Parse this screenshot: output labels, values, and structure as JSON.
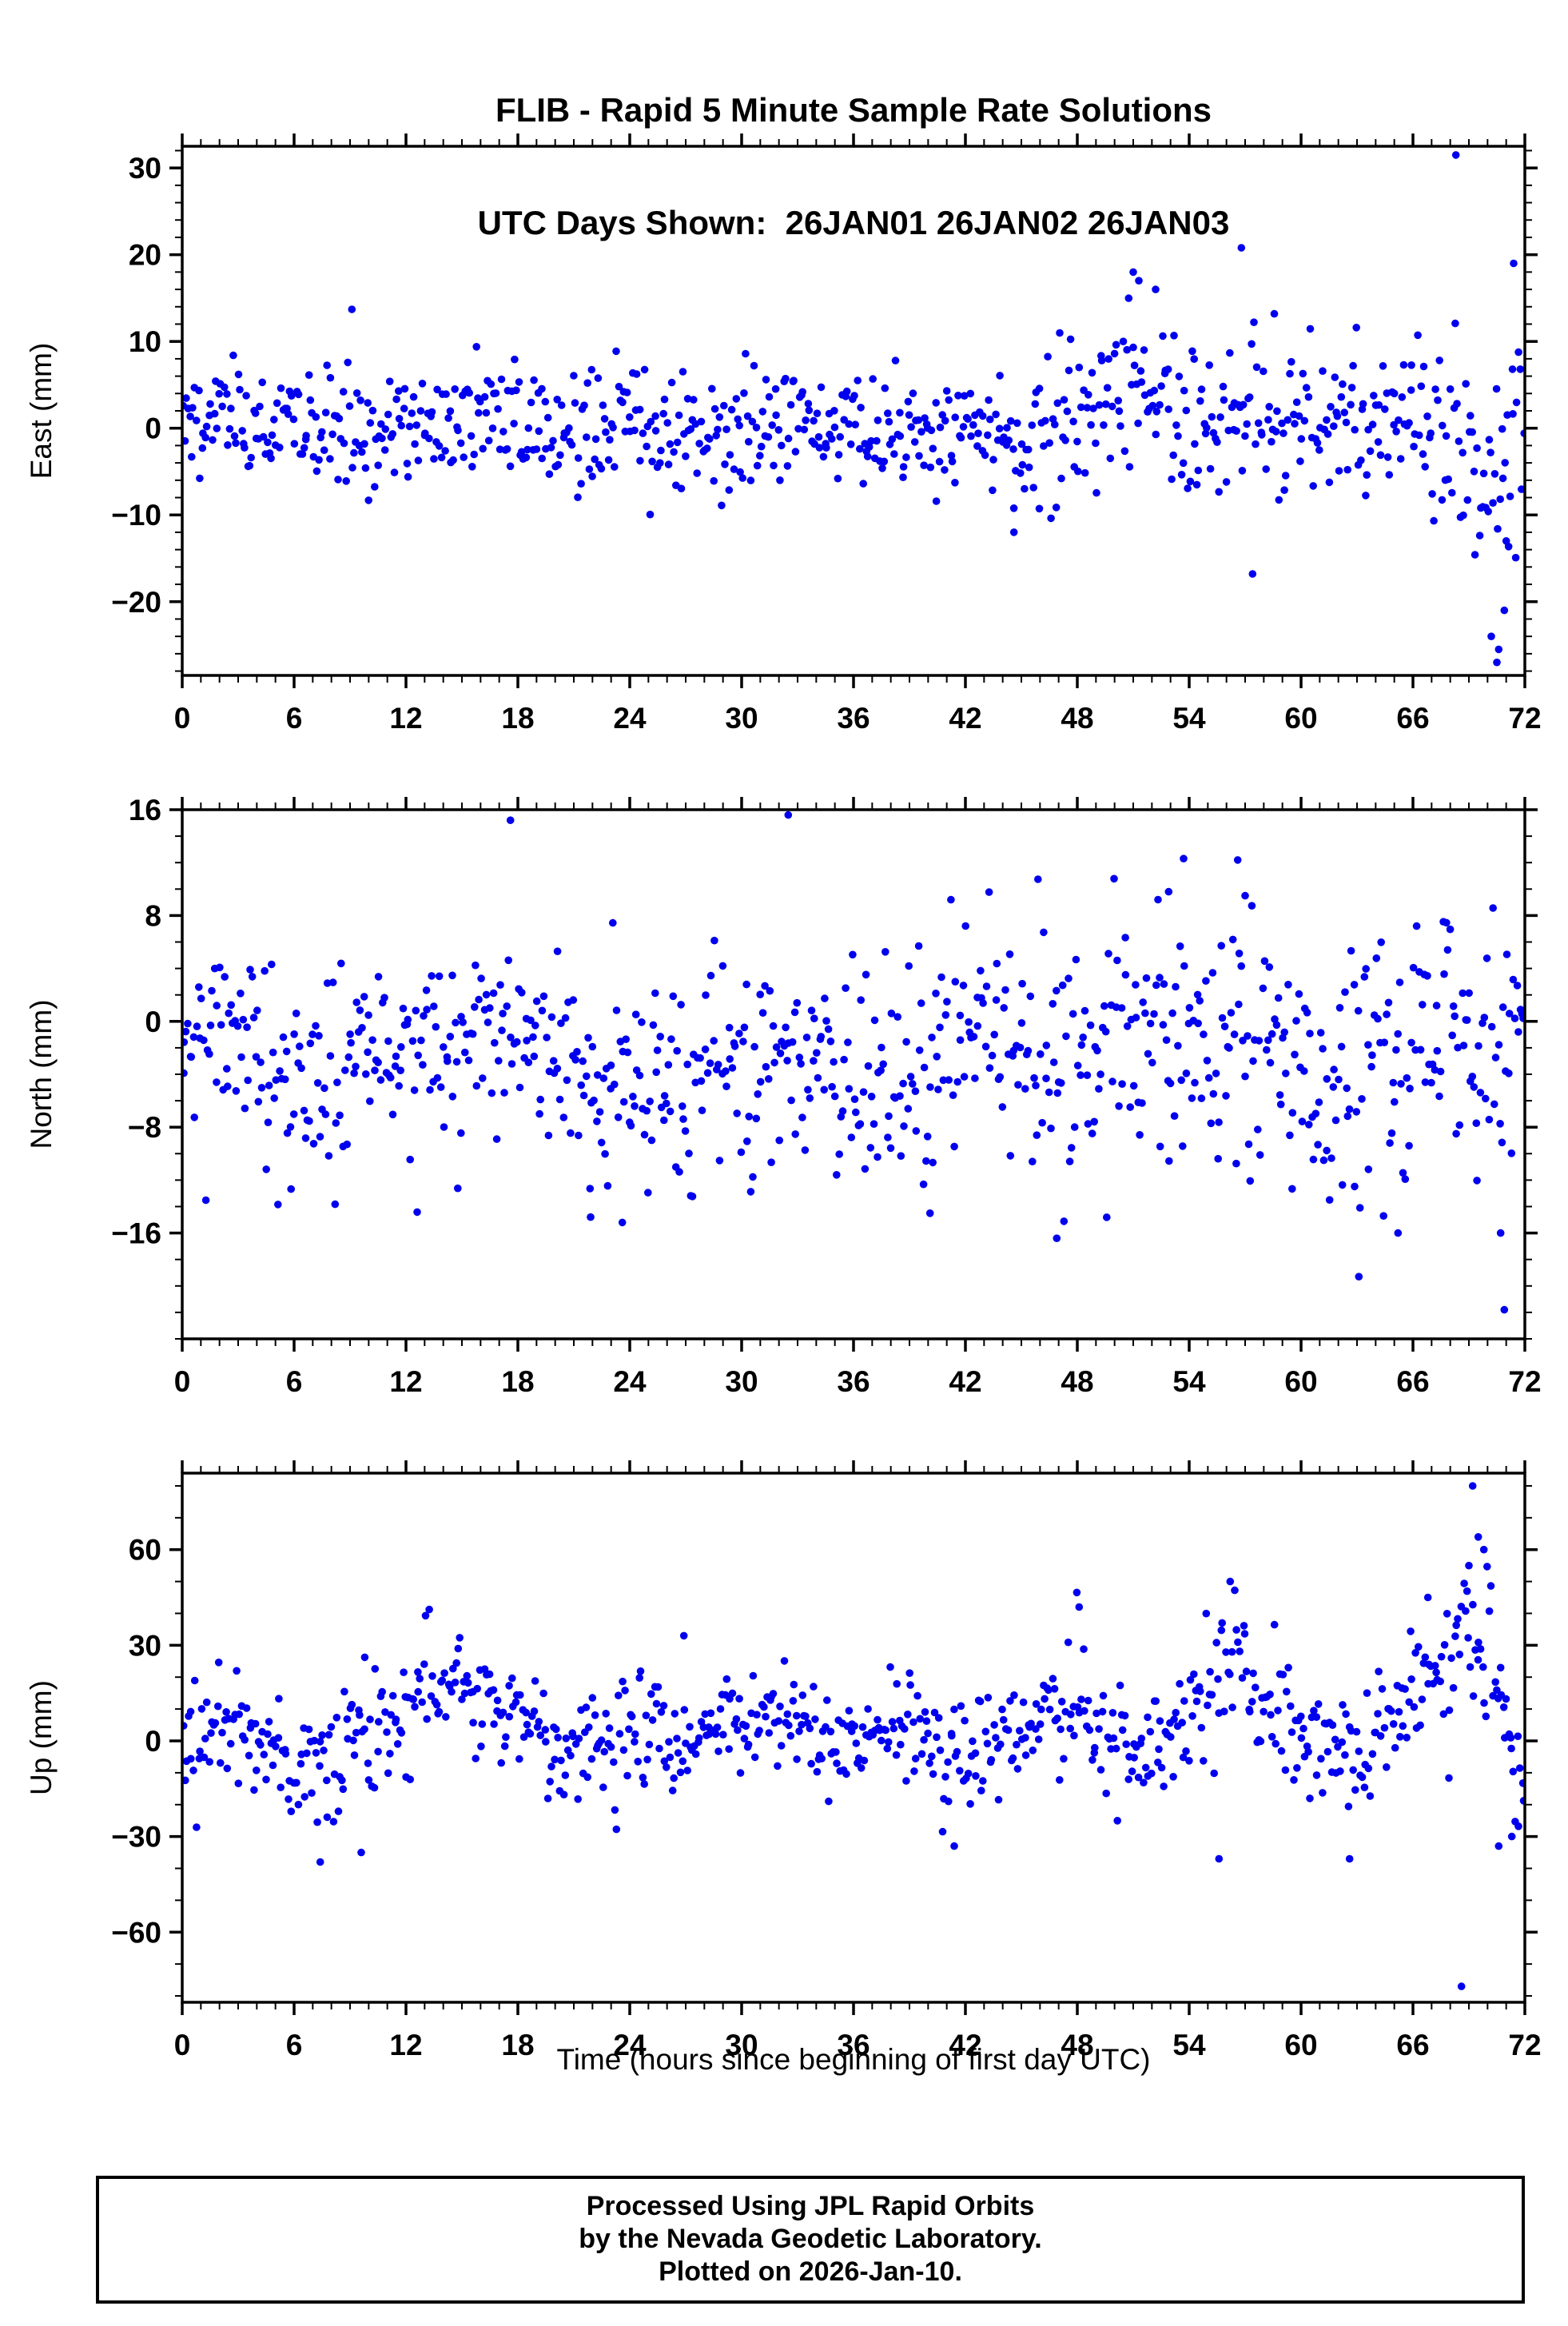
{
  "figure": {
    "title_line1": "FLIB - Rapid 5 Minute Sample Rate Solutions",
    "title_line2": "UTC Days Shown:  26JAN01 26JAN02 26JAN03",
    "footer_lines": [
      "Processed Using JPL Rapid Orbits",
      "by the Nevada Geodetic Laboratory.",
      "Plotted on 2026-Jan-10."
    ]
  },
  "chart_data": {
    "type": "scatter",
    "title": "FLIB - Rapid 5 Minute Sample Rate Solutions",
    "subtitle": "UTC Days Shown:  26JAN01 26JAN02 26JAN03",
    "xlabel": "Time (hours since beginning of first day UTC)",
    "marker_color": "#0000EE",
    "marker_radius_px": 4.8,
    "x_range": [
      0,
      72
    ],
    "x_major_ticks": [
      0,
      6,
      12,
      18,
      24,
      30,
      36,
      42,
      48,
      54,
      60,
      66,
      72
    ],
    "x_minor_step": 1,
    "grid": false,
    "legend": "none",
    "panels": [
      {
        "name": "east",
        "ylabel": "East (mm)",
        "ylim": [
          -28.5,
          32.5
        ],
        "y_major_ticks": [
          -20,
          -10,
          0,
          10,
          20,
          30
        ],
        "y_minor_step": 2,
        "points_count": 780,
        "seed": 42,
        "trend_profile": [
          [
            0,
            0.5,
            3.2
          ],
          [
            6,
            0,
            3.4
          ],
          [
            12,
            0,
            3.2
          ],
          [
            18,
            0.5,
            3.4
          ],
          [
            24,
            0.5,
            3.6
          ],
          [
            30,
            0,
            3.4
          ],
          [
            36,
            0,
            3.4
          ],
          [
            42,
            -0.5,
            3.6
          ],
          [
            46,
            -1,
            4.2
          ],
          [
            49,
            2,
            4.5
          ],
          [
            51,
            6,
            4.5
          ],
          [
            53,
            3,
            5
          ],
          [
            55,
            0,
            5
          ],
          [
            57,
            1,
            5.5
          ],
          [
            59,
            0,
            4
          ],
          [
            61,
            1,
            3.8
          ],
          [
            63,
            1,
            4
          ],
          [
            65,
            2,
            4.2
          ],
          [
            67,
            1,
            4.5
          ],
          [
            68.5,
            0,
            5
          ],
          [
            69.5,
            -4,
            6
          ],
          [
            70.5,
            -9,
            7
          ],
          [
            71.3,
            2,
            8
          ],
          [
            72,
            0,
            5
          ]
        ],
        "outliers": [
          [
            68.3,
            31.5
          ],
          [
            70.2,
            -24
          ],
          [
            70.5,
            -27
          ],
          [
            70.6,
            -25.5
          ],
          [
            70.9,
            -21
          ],
          [
            71.0,
            -13
          ],
          [
            71.4,
            19
          ],
          [
            56.8,
            20.8
          ],
          [
            57.4,
            -16.8
          ],
          [
            44.6,
            -12
          ],
          [
            9.1,
            13.7
          ],
          [
            51.0,
            18
          ],
          [
            51.3,
            17
          ],
          [
            52.2,
            16
          ]
        ]
      },
      {
        "name": "north",
        "ylabel": "North (mm)",
        "ylim": [
          -24,
          16
        ],
        "y_major_ticks": [
          -16,
          -8,
          0,
          8,
          16
        ],
        "y_minor_step": 2,
        "points_count": 780,
        "seed": 43,
        "trend_profile": [
          [
            0,
            -1.5,
            3
          ],
          [
            3,
            -2.5,
            3.5
          ],
          [
            6,
            -4,
            3.8
          ],
          [
            9,
            -3,
            3.8
          ],
          [
            12,
            -2,
            3.5
          ],
          [
            15,
            -1,
            3.5
          ],
          [
            18,
            -1,
            3.8
          ],
          [
            21,
            -3,
            3.8
          ],
          [
            24,
            -4,
            4
          ],
          [
            27,
            -4.5,
            3.8
          ],
          [
            30,
            -4,
            4
          ],
          [
            33,
            -3.5,
            3.8
          ],
          [
            36,
            -4.5,
            3.5
          ],
          [
            39,
            -3,
            3.8
          ],
          [
            42,
            -1,
            4.2
          ],
          [
            45,
            -2.5,
            4.5
          ],
          [
            48,
            -2.5,
            4.2
          ],
          [
            51,
            -2,
            4.5
          ],
          [
            54,
            -1,
            5
          ],
          [
            57,
            -2.5,
            5
          ],
          [
            60,
            -4,
            4.5
          ],
          [
            63,
            -3.5,
            5
          ],
          [
            66,
            -2.5,
            5
          ],
          [
            69,
            -1.5,
            5
          ],
          [
            72,
            -2.5,
            5.5
          ]
        ],
        "outliers": [
          [
            17.6,
            15.2
          ],
          [
            32.5,
            15.6
          ],
          [
            53.7,
            12.3
          ],
          [
            56.6,
            12.2
          ],
          [
            52.9,
            9.8
          ],
          [
            57.0,
            9.5
          ],
          [
            63.1,
            -19.3
          ],
          [
            70.9,
            -21.8
          ],
          [
            65.2,
            -16
          ],
          [
            70.7,
            -16
          ],
          [
            23.6,
            -15.2
          ],
          [
            46.9,
            -16.4
          ],
          [
            21.9,
            -14.8
          ],
          [
            40.1,
            -14.5
          ]
        ]
      },
      {
        "name": "up",
        "ylabel": "Up (mm)",
        "ylim": [
          -82,
          84
        ],
        "y_major_ticks": [
          -60,
          -30,
          0,
          30,
          60
        ],
        "y_minor_step": 10,
        "points_count": 780,
        "seed": 44,
        "trend_profile": [
          [
            0,
            0,
            9
          ],
          [
            2,
            4,
            8
          ],
          [
            4,
            0,
            9
          ],
          [
            6,
            -10,
            9
          ],
          [
            8,
            -5,
            10
          ],
          [
            10,
            2,
            10
          ],
          [
            12,
            10,
            9
          ],
          [
            14,
            20,
            9
          ],
          [
            15,
            15,
            10
          ],
          [
            17,
            10,
            10
          ],
          [
            19,
            0,
            9
          ],
          [
            21,
            -4,
            8
          ],
          [
            23,
            -2,
            10
          ],
          [
            25,
            2,
            9
          ],
          [
            27,
            0,
            8
          ],
          [
            29,
            5,
            8
          ],
          [
            31,
            6,
            8
          ],
          [
            33,
            2,
            9
          ],
          [
            35,
            -3,
            8
          ],
          [
            37,
            1,
            8
          ],
          [
            39,
            4,
            8
          ],
          [
            41,
            -2,
            9
          ],
          [
            43,
            1,
            9
          ],
          [
            45,
            2,
            10
          ],
          [
            47,
            12,
            11
          ],
          [
            48.5,
            16,
            11
          ],
          [
            50,
            0,
            10
          ],
          [
            52,
            -3,
            10
          ],
          [
            54,
            6,
            12
          ],
          [
            56,
            24,
            10
          ],
          [
            57.5,
            14,
            10
          ],
          [
            59,
            8,
            10
          ],
          [
            61,
            -2,
            9
          ],
          [
            63,
            -4,
            9
          ],
          [
            65,
            8,
            10
          ],
          [
            66.5,
            22,
            9
          ],
          [
            68,
            15,
            13
          ],
          [
            69.3,
            40,
            18
          ],
          [
            70.3,
            25,
            16
          ],
          [
            71,
            -8,
            12
          ],
          [
            72,
            -12,
            9
          ]
        ],
        "outliers": [
          [
            69.2,
            80
          ],
          [
            68.6,
            -77
          ],
          [
            69.5,
            64
          ],
          [
            69.8,
            60
          ],
          [
            69.0,
            55
          ],
          [
            7.4,
            -38
          ],
          [
            9.6,
            -35
          ],
          [
            41.4,
            -33
          ],
          [
            55.6,
            -37
          ],
          [
            62.6,
            -37
          ],
          [
            70.6,
            -33
          ],
          [
            71.3,
            -30
          ],
          [
            26.9,
            33
          ],
          [
            48.1,
            42
          ],
          [
            56.2,
            50
          ],
          [
            66.8,
            45
          ]
        ]
      }
    ]
  }
}
